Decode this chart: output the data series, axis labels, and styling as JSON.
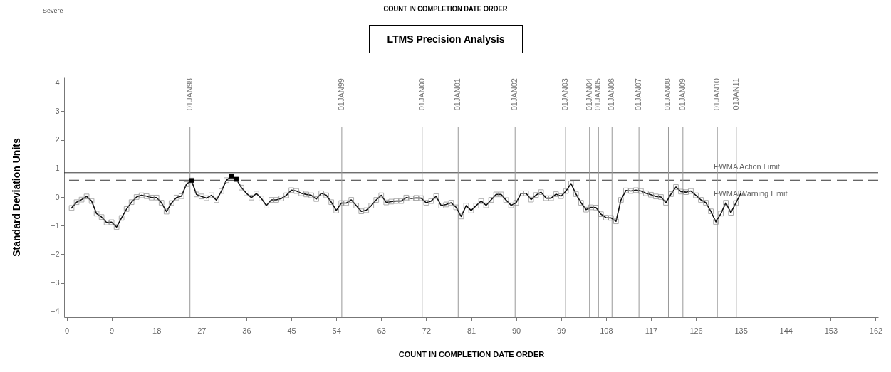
{
  "chart_data": {
    "type": "line",
    "title": "LTMS Precision Analysis",
    "subtitle": "COUNT IN COMPLETION DATE ORDER",
    "xlabel": "COUNT IN COMPLETION DATE ORDER",
    "ylabel": "Standard Deviation Units",
    "annotations": [
      "Severe"
    ],
    "xlim": [
      -0.5,
      162.5
    ],
    "xticks": [
      0,
      9,
      18,
      27,
      36,
      45,
      54,
      63,
      72,
      81,
      90,
      99,
      108,
      117,
      126,
      135,
      144,
      153,
      162
    ],
    "ylim": [
      -4.2,
      4.2
    ],
    "yticks": [
      -4,
      -3,
      -2,
      -1,
      0,
      1,
      2,
      3,
      4
    ],
    "marker": "square",
    "series": [
      {
        "color": "#111111",
        "x": [
          1,
          2,
          3,
          4,
          5,
          6,
          7,
          8,
          9,
          10,
          11,
          12,
          13,
          14,
          15,
          16,
          17,
          18,
          19,
          20,
          21,
          22,
          23,
          24,
          25,
          26,
          27,
          28,
          29,
          30,
          31,
          32,
          33,
          34,
          35,
          36,
          37,
          38,
          39,
          40,
          41,
          42,
          43,
          44,
          45,
          46,
          47,
          48,
          49,
          50,
          51,
          52,
          53,
          54,
          55,
          56,
          57,
          58,
          59,
          60,
          61,
          62,
          63,
          64,
          65,
          66,
          67,
          68,
          69,
          70,
          71,
          72,
          73,
          74,
          75,
          76,
          77,
          78,
          79,
          80,
          81,
          82,
          83,
          84,
          85,
          86,
          87,
          88,
          89,
          90,
          91,
          92,
          93,
          94,
          95,
          96,
          97,
          98,
          99,
          100,
          101,
          102,
          103,
          104,
          105,
          106,
          107,
          108,
          109,
          110,
          111,
          112,
          113,
          114,
          115,
          116,
          117,
          118,
          119,
          120,
          121,
          122,
          123,
          124,
          125,
          126,
          127,
          128,
          129,
          130,
          131,
          132,
          133,
          134,
          135
        ],
        "values": [
          -0.38,
          -0.18,
          -0.09,
          0.02,
          -0.14,
          -0.58,
          -0.7,
          -0.89,
          -0.88,
          -1.05,
          -0.73,
          -0.42,
          -0.18,
          0,
          0.06,
          0.03,
          -0.02,
          -0.02,
          -0.2,
          -0.51,
          -0.21,
          -0.02,
          0.03,
          0.45,
          0.58,
          0.09,
          0.02,
          -0.04,
          0.06,
          -0.11,
          0.21,
          0.59,
          0.73,
          0.62,
          0.33,
          0.13,
          -0.02,
          0.12,
          -0.05,
          -0.3,
          -0.1,
          -0.1,
          -0.05,
          0.06,
          0.24,
          0.21,
          0.13,
          0.09,
          0.06,
          -0.07,
          0.13,
          0.06,
          -0.18,
          -0.47,
          -0.21,
          -0.21,
          -0.1,
          -0.3,
          -0.5,
          -0.46,
          -0.3,
          -0.1,
          0.06,
          -0.19,
          -0.16,
          -0.14,
          -0.14,
          -0.02,
          -0.05,
          -0.03,
          -0.04,
          -0.2,
          -0.14,
          0.03,
          -0.3,
          -0.26,
          -0.2,
          -0.36,
          -0.68,
          -0.3,
          -0.47,
          -0.3,
          -0.14,
          -0.29,
          -0.1,
          0.09,
          0.09,
          -0.11,
          -0.29,
          -0.2,
          0.13,
          0.13,
          -0.09,
          0.07,
          0.17,
          -0.04,
          -0.04,
          0.1,
          0.03,
          0.21,
          0.47,
          0.1,
          -0.2,
          -0.44,
          -0.36,
          -0.37,
          -0.6,
          -0.72,
          -0.73,
          -0.85,
          -0.1,
          0.23,
          0.21,
          0.24,
          0.21,
          0.13,
          0.08,
          0.02,
          0,
          -0.2,
          0.1,
          0.35,
          0.19,
          0.17,
          0.21,
          0.06,
          -0.1,
          -0.2,
          -0.5,
          -0.87,
          -0.58,
          -0.2,
          -0.55,
          -0.21,
          0.13
        ]
      },
      {
        "type": "scatter",
        "color": "#000000",
        "x": [
          25,
          33,
          34
        ],
        "values": [
          0.58,
          0.73,
          0.62
        ]
      }
    ],
    "ref_lines": [
      {
        "axis": "y",
        "value": 0.85,
        "label": "EWMA Action Limit",
        "color": "#333333",
        "line_style": "solid"
      },
      {
        "axis": "y",
        "value": 0.59,
        "label": "EWMA Warning Limit",
        "color": "#333333",
        "line_style": "dashed"
      },
      {
        "axis": "x",
        "value": 24.7,
        "label": "01JAN98",
        "color": "#999999"
      },
      {
        "axis": "x",
        "value": 55.1,
        "label": "01JAN99",
        "color": "#999999"
      },
      {
        "axis": "x",
        "value": 71.2,
        "label": "01JAN00",
        "color": "#999999"
      },
      {
        "axis": "x",
        "value": 78.4,
        "label": "01JAN01",
        "color": "#999999"
      },
      {
        "axis": "x",
        "value": 89.8,
        "label": "01JAN02",
        "color": "#999999"
      },
      {
        "axis": "x",
        "value": 99.9,
        "label": "01JAN03",
        "color": "#999999"
      },
      {
        "axis": "x",
        "value": 104.7,
        "label": "01JAN04",
        "color": "#999999"
      },
      {
        "axis": "x",
        "value": 106.5,
        "label": "01JAN05",
        "color": "#999999"
      },
      {
        "axis": "x",
        "value": 109.2,
        "label": "01JAN06",
        "color": "#999999"
      },
      {
        "axis": "x",
        "value": 114.6,
        "label": "01JAN07",
        "color": "#999999"
      },
      {
        "axis": "x",
        "value": 120.5,
        "label": "01JAN08",
        "color": "#999999"
      },
      {
        "axis": "x",
        "value": 123.4,
        "label": "01JAN09",
        "color": "#999999"
      },
      {
        "axis": "x",
        "value": 130.3,
        "label": "01JAN10",
        "color": "#999999"
      },
      {
        "axis": "x",
        "value": 134.1,
        "label": "01JAN11",
        "color": "#999999"
      }
    ]
  }
}
